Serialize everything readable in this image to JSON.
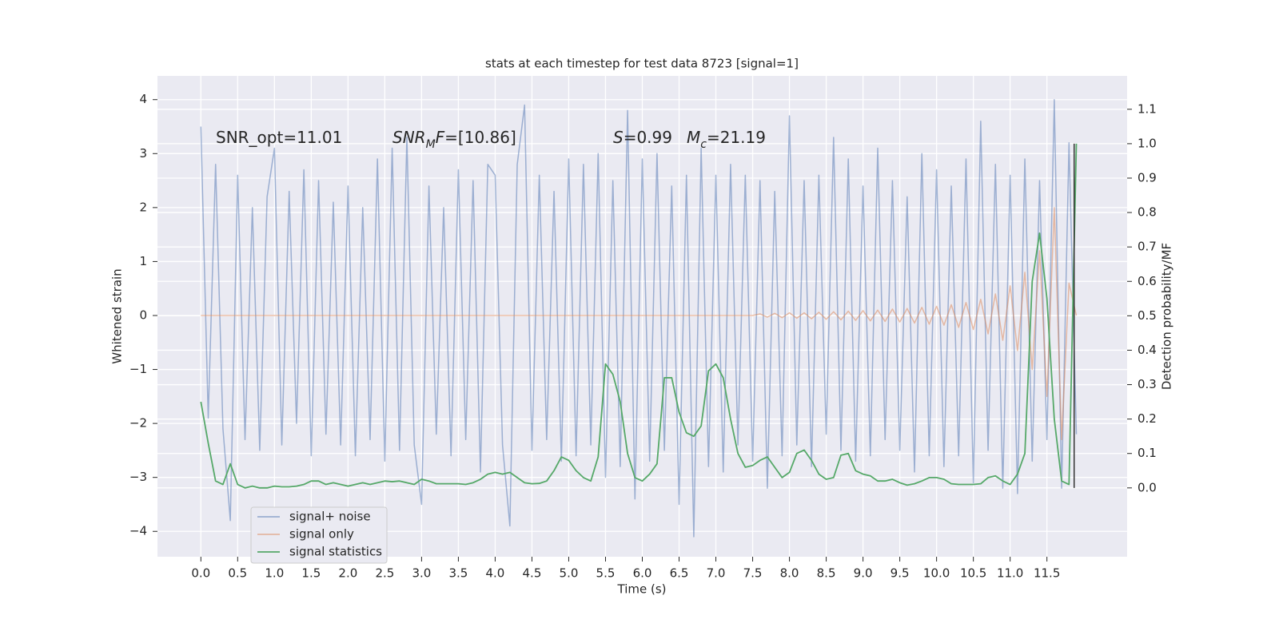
{
  "chart_data": {
    "type": "line",
    "title": "stats at each timestep for test data 8723 [signal=1]",
    "xlabel": "Time (s)",
    "ylabel": "Whitened strain",
    "y2label": "Detection probability/MF",
    "grid": true,
    "legend": "lower left",
    "xlim": [
      -0.59,
      12.59
    ],
    "ylim": [
      -4.47,
      4.44
    ],
    "y2lim": [
      -0.2,
      1.197
    ],
    "xticks": [
      {
        "value": 0,
        "label": "0.0"
      },
      0.5,
      {
        "value": 1,
        "label": "1.0"
      },
      1.5,
      {
        "value": 2,
        "label": "2.0"
      },
      2.5,
      {
        "value": 3,
        "label": "3.0"
      },
      3.5,
      {
        "value": 4,
        "label": "4.0"
      },
      4.5,
      {
        "value": 5,
        "label": "5.0"
      },
      5.5,
      {
        "value": 6,
        "label": "6.0"
      },
      6.5,
      {
        "value": 7,
        "label": "7.0"
      },
      7.5,
      {
        "value": 8,
        "label": "8.0"
      },
      8.5,
      {
        "value": 9,
        "label": "9.0"
      },
      9.5,
      {
        "value": 10,
        "label": "10.0"
      },
      10.5,
      {
        "value": 11,
        "label": "11.0"
      },
      11.5
    ],
    "yticks": [
      {
        "value": -4,
        "label": "−4"
      },
      {
        "value": -3,
        "label": "−3"
      },
      {
        "value": -2,
        "label": "−2"
      },
      {
        "value": -1,
        "label": "−1"
      },
      0,
      1,
      2,
      3,
      4
    ],
    "y2ticks": [
      {
        "value": 0,
        "label": "0.0"
      },
      0.1,
      0.2,
      0.3,
      0.4,
      0.5,
      0.6,
      0.7,
      0.8,
      0.9,
      {
        "value": 1,
        "label": "1.0"
      },
      1.1
    ],
    "x": [
      0,
      0.1,
      0.2,
      0.3,
      0.4,
      0.5,
      0.6,
      0.7,
      0.8,
      0.9,
      1,
      1.1,
      1.2,
      1.3,
      1.4,
      1.5,
      1.6,
      1.7,
      1.8,
      1.9,
      2,
      2.1,
      2.2,
      2.3,
      2.4,
      2.5,
      2.6,
      2.7,
      2.8,
      2.9,
      3,
      3.1,
      3.2,
      3.3,
      3.4,
      3.5,
      3.6,
      3.7,
      3.8,
      3.9,
      4,
      4.1,
      4.2,
      4.3,
      4.4,
      4.5,
      4.6,
      4.7,
      4.8,
      4.9,
      5,
      5.1,
      5.2,
      5.3,
      5.4,
      5.5,
      5.6,
      5.7,
      5.8,
      5.9,
      6,
      6.1,
      6.2,
      6.3,
      6.4,
      6.5,
      6.6,
      6.7,
      6.8,
      6.9,
      7,
      7.1,
      7.2,
      7.3,
      7.4,
      7.5,
      7.6,
      7.7,
      7.8,
      7.9,
      8,
      8.1,
      8.2,
      8.3,
      8.4,
      8.5,
      8.6,
      8.7,
      8.8,
      8.9,
      9,
      9.1,
      9.2,
      9.3,
      9.4,
      9.5,
      9.6,
      9.7,
      9.8,
      9.9,
      10,
      10.1,
      10.2,
      10.3,
      10.4,
      10.5,
      10.6,
      10.7,
      10.8,
      10.9,
      11,
      11.1,
      11.2,
      11.3,
      11.4,
      11.5,
      11.6,
      11.7,
      11.8,
      11.9
    ],
    "series": [
      {
        "name": "signal+ noise",
        "color": "#4c72b0",
        "values": [
          3.5,
          -1.9,
          2.8,
          -2.1,
          -3.8,
          2.6,
          -2.3,
          2.0,
          -2.5,
          2.2,
          3.1,
          -2.4,
          2.3,
          -2.0,
          2.7,
          -2.6,
          2.5,
          -2.2,
          2.1,
          -2.4,
          2.4,
          -2.6,
          2.0,
          -2.3,
          2.9,
          -2.7,
          3.1,
          -2.5,
          3.3,
          -2.4,
          -3.5,
          2.4,
          -2.2,
          2.0,
          -2.6,
          2.7,
          -2.3,
          2.5,
          -2.9,
          2.8,
          2.6,
          -2.4,
          -3.9,
          2.8,
          3.9,
          -2.5,
          2.6,
          -2.3,
          2.3,
          -2.7,
          2.9,
          -2.6,
          2.8,
          -2.4,
          3.0,
          -3.0,
          2.5,
          -2.8,
          3.8,
          -3.4,
          2.9,
          -2.7,
          3.0,
          -2.5,
          2.4,
          -3.5,
          2.6,
          -4.1,
          3.1,
          -2.8,
          2.6,
          -2.9,
          2.8,
          -2.4,
          2.6,
          -2.7,
          2.5,
          -3.2,
          2.3,
          -2.6,
          3.7,
          -2.4,
          2.5,
          -2.8,
          2.6,
          -2.2,
          3.3,
          -2.5,
          2.9,
          -2.7,
          2.4,
          -2.6,
          3.1,
          -2.3,
          2.5,
          -2.5,
          2.2,
          -2.9,
          3.0,
          -2.6,
          2.7,
          -2.8,
          2.4,
          -2.6,
          2.9,
          -3.1,
          3.6,
          -2.5,
          2.8,
          -3.2,
          2.6,
          -3.3,
          2.9,
          -2.7,
          2.5,
          -2.3,
          4.0,
          -3.2,
          3.2,
          -2.2
        ]
      },
      {
        "name": "signal only",
        "color": "#dd8452",
        "values": [
          0,
          0,
          0,
          0,
          0,
          0,
          0,
          0,
          0,
          0,
          0,
          0,
          0,
          0,
          0,
          0,
          0,
          0,
          0,
          0,
          0,
          0,
          0,
          0,
          0,
          0,
          0,
          0,
          0,
          0,
          0,
          0,
          0,
          0,
          0,
          0,
          0,
          0,
          0,
          0,
          0,
          0,
          0,
          0,
          0,
          0,
          0,
          0,
          0,
          0,
          0,
          0,
          0,
          0,
          0,
          0,
          0,
          0,
          0,
          0,
          0,
          0,
          0,
          0,
          0,
          0,
          0,
          0,
          0,
          0,
          0,
          0,
          0,
          0,
          0,
          0,
          0.03,
          -0.03,
          0.04,
          -0.04,
          0.05,
          -0.05,
          0.05,
          -0.06,
          0.06,
          -0.07,
          0.07,
          -0.08,
          0.08,
          -0.09,
          0.09,
          -0.1,
          0.1,
          -0.11,
          0.12,
          -0.12,
          0.13,
          -0.14,
          0.15,
          -0.16,
          0.17,
          -0.18,
          0.2,
          -0.22,
          0.24,
          -0.26,
          0.3,
          -0.34,
          0.4,
          -0.46,
          0.55,
          -0.65,
          0.8,
          -1.0,
          1.2,
          -1.5,
          2.0,
          -2.3,
          0.6,
          0
        ]
      },
      {
        "name": "signal statistics",
        "color": "#55a868",
        "axis": "y2",
        "values": [
          0.25,
          0.13,
          0.02,
          0.01,
          0.07,
          0.01,
          0,
          0.005,
          0,
          0,
          0.005,
          0.003,
          0.003,
          0.005,
          0.01,
          0.02,
          0.02,
          0.01,
          0.015,
          0.01,
          0.005,
          0.01,
          0.015,
          0.01,
          0.015,
          0.02,
          0.018,
          0.02,
          0.015,
          0.01,
          0.025,
          0.02,
          0.012,
          0.012,
          0.012,
          0.012,
          0.01,
          0.015,
          0.025,
          0.04,
          0.045,
          0.04,
          0.045,
          0.03,
          0.015,
          0.012,
          0.013,
          0.02,
          0.05,
          0.09,
          0.08,
          0.05,
          0.03,
          0.02,
          0.09,
          0.36,
          0.33,
          0.25,
          0.1,
          0.03,
          0.02,
          0.04,
          0.07,
          0.32,
          0.32,
          0.22,
          0.16,
          0.15,
          0.18,
          0.34,
          0.36,
          0.32,
          0.2,
          0.1,
          0.06,
          0.065,
          0.08,
          0.09,
          0.06,
          0.03,
          0.045,
          0.1,
          0.11,
          0.08,
          0.04,
          0.025,
          0.03,
          0.095,
          0.1,
          0.05,
          0.04,
          0.035,
          0.02,
          0.02,
          0.025,
          0.015,
          0.008,
          0.012,
          0.02,
          0.03,
          0.03,
          0.025,
          0.012,
          0.01,
          0.01,
          0.01,
          0.012,
          0.03,
          0.035,
          0.02,
          0.01,
          0.04,
          0.1,
          0.6,
          0.74,
          0.55,
          0.2,
          0.02,
          0.01,
          1.0
        ]
      }
    ],
    "vline": {
      "x": 11.87,
      "y2": [
        0,
        1.0
      ],
      "color": "#333333"
    },
    "annotations": [
      {
        "segments": [
          {
            "text": "SNR_opt=11.01"
          }
        ]
      },
      {
        "segments": [
          {
            "text": "SNR",
            "italic": true
          },
          {
            "text": "M",
            "italic": true,
            "sub": true
          },
          {
            "text": "F",
            "italic": true
          },
          {
            "text": "=[10.86]"
          }
        ]
      },
      {
        "segments": [
          {
            "text": "S",
            "italic": true
          },
          {
            "text": "=0.99"
          }
        ]
      },
      {
        "segments": [
          {
            "text": "M",
            "italic": true
          },
          {
            "text": "c",
            "italic": true,
            "sub": true
          },
          {
            "text": "=21.19"
          }
        ]
      }
    ]
  }
}
